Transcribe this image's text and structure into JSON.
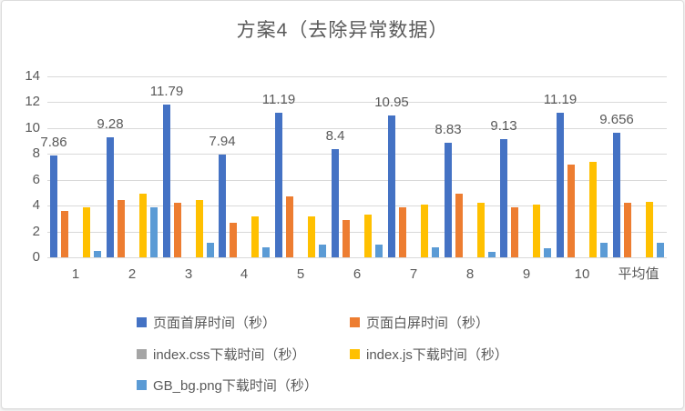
{
  "frame": {
    "background": "#ffffff",
    "border_color": "#dcdcdc"
  },
  "chart_data": {
    "type": "bar",
    "title": "方案4（去除异常数据）",
    "categories": [
      "1",
      "2",
      "3",
      "4",
      "5",
      "6",
      "7",
      "8",
      "9",
      "10",
      "平均值"
    ],
    "series": [
      {
        "name": "页面首屏时间（秒）",
        "color": "#4472C4",
        "values": [
          7.86,
          9.28,
          11.79,
          7.94,
          11.19,
          8.4,
          10.95,
          8.83,
          9.13,
          11.19,
          9.656
        ],
        "labels": [
          "7.86",
          "9.28",
          "11.79",
          "7.94",
          "11.19",
          "8.4",
          "10.95",
          "8.83",
          "9.13",
          "11.19",
          "9.656"
        ]
      },
      {
        "name": "页面白屏时间（秒）",
        "color": "#ED7D31",
        "values": [
          3.6,
          4.4,
          4.2,
          2.7,
          4.7,
          2.9,
          3.9,
          4.9,
          3.9,
          7.2,
          4.2
        ]
      },
      {
        "name": "index.css下载时间（秒）",
        "color": "#A5A5A5",
        "values": [
          0,
          0,
          0,
          0,
          0,
          0,
          0,
          0,
          0,
          0,
          0
        ]
      },
      {
        "name": "index.js下载时间（秒）",
        "color": "#FFC000",
        "values": [
          3.9,
          4.9,
          4.4,
          3.2,
          3.2,
          3.3,
          4.1,
          4.2,
          4.1,
          7.4,
          4.3
        ]
      },
      {
        "name": "GB_bg.png下载时间（秒）",
        "color": "#5B9BD5",
        "values": [
          0.5,
          3.9,
          1.1,
          0.8,
          1.0,
          1.0,
          0.8,
          0.4,
          0.7,
          1.1,
          1.1
        ]
      }
    ],
    "ylim": [
      0,
      14
    ],
    "yticks": [
      0,
      2,
      4,
      6,
      8,
      10,
      12,
      14
    ],
    "grid": true,
    "legend_position": "bottom",
    "styles": {
      "text_color": "#595959",
      "grid_color": "#d9d9d9",
      "axis_line_color": "#d9d9d9"
    }
  }
}
